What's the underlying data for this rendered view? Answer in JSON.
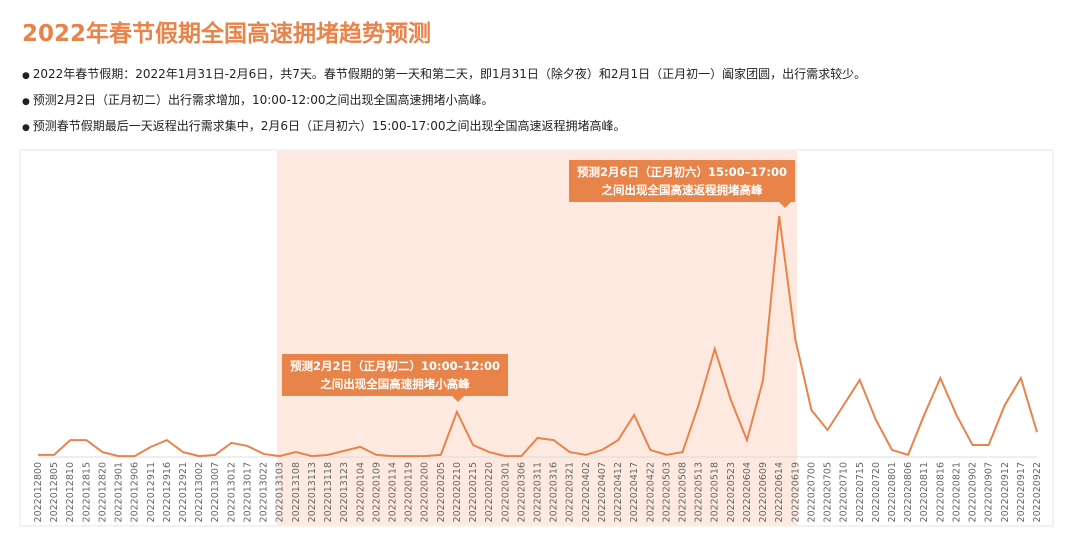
{
  "title": "2022年春节假期全国高速拥堵趋势预测",
  "bullets": [
    "2022年春节假期：2022年1月31日-2月6日，共7天。春节假期的第一天和第二天，即1月31日（除夕夜）和2月1日（正月初一）阖家团圆，出行需求较少。",
    "预测2月2日（正月初二）出行需求增加，10:00-12:00之间出现全国高速拥堵小高峰。",
    "预测春节假期最后一天返程出行需求集中，2月6日（正月初六）15:00-17:00之间出现全国高速返程拥堵高峰。"
  ],
  "chart_data": {
    "type": "line",
    "color": "#e8834a",
    "ylim": [
      0,
      100
    ],
    "categories": [
      "2022012800",
      "2022012805",
      "2022012810",
      "2022012815",
      "2022012820",
      "2022012901",
      "2022012906",
      "2022012911",
      "2022012916",
      "2022012921",
      "2022013002",
      "2022013007",
      "2022013012",
      "2022013017",
      "2022013022",
      "2022013103",
      "2022013108",
      "2022013113",
      "2022013118",
      "2022013123",
      "2022020104",
      "2022020109",
      "2022020114",
      "2022020119",
      "2022020200",
      "2022020205",
      "2022020210",
      "2022020215",
      "2022020220",
      "2022020301",
      "2022020306",
      "2022020311",
      "2022020316",
      "2022020321",
      "2022020402",
      "2022020407",
      "2022020412",
      "2022020417",
      "2022020422",
      "2022020503",
      "2022020508",
      "2022020513",
      "2022020518",
      "2022020523",
      "2022020604",
      "2022020609",
      "2022020614",
      "2022020619",
      "2022020700",
      "2022020705",
      "2022020710",
      "2022020715",
      "2022020720",
      "2022020801",
      "2022020806",
      "2022020811",
      "2022020816",
      "2022020821",
      "2022020902",
      "2022020907",
      "2022020912",
      "2022020917",
      "2022020922"
    ],
    "values": [
      0.7,
      0.7,
      5.5,
      5.5,
      1.6,
      0.3,
      0.3,
      3.3,
      5.5,
      1.6,
      0.3,
      0.7,
      4.6,
      3.6,
      1,
      0.3,
      1.6,
      0.3,
      0.7,
      2,
      3.3,
      0.7,
      0.3,
      0.3,
      0.3,
      0.7,
      14.7,
      3.9,
      1.6,
      0.3,
      0.3,
      6.2,
      5.5,
      1.6,
      0.7,
      2.3,
      5.5,
      13.7,
      2.3,
      0.7,
      1.6,
      17,
      35.2,
      18.6,
      5.5,
      25.1,
      78.5,
      38.4,
      15.3,
      8.8,
      16.9,
      25.1,
      12.1,
      2.3,
      0.7,
      13.7,
      25.7,
      13.7,
      3.9,
      3.9,
      16.9,
      25.7,
      8.1
    ],
    "annotations": [
      {
        "lines": [
          "预测2月2日（正月初二）10:00–12:00",
          "之间出现全国高速拥堵小高峰"
        ]
      },
      {
        "lines": [
          "预测2月6日（正月初六）15:00–17:00",
          "之间出现全国高速返程拥堵高峰"
        ]
      }
    ]
  }
}
